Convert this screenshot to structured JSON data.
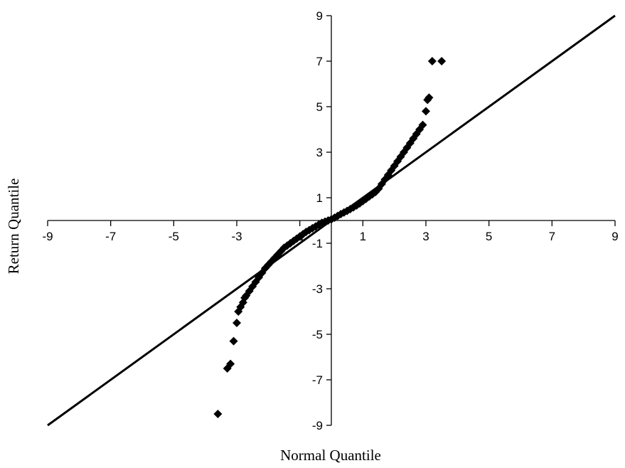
{
  "chart_data": {
    "type": "scatter",
    "title": "",
    "xlabel": "Normal Quantile",
    "ylabel": "Return Quantile",
    "xlim": [
      -9,
      9
    ],
    "ylim": [
      -9,
      9
    ],
    "x_ticks": [
      -9,
      -7,
      -5,
      -3,
      -1,
      1,
      3,
      5,
      7,
      9
    ],
    "y_ticks": [
      9,
      7,
      5,
      3,
      1,
      -1,
      -3,
      -5,
      -7,
      -9
    ],
    "x_tick_labels": [
      "-9",
      "-7",
      "-5",
      "-3",
      "-1",
      "1",
      "3",
      "5",
      "7",
      "9"
    ],
    "y_tick_labels": [
      "9",
      "7",
      "5",
      "3",
      "1",
      "-1",
      "-3",
      "-5",
      "-7",
      "-9"
    ],
    "grid": false,
    "legend": "none",
    "reference_line": {
      "from": [
        -9,
        -9
      ],
      "to": [
        9,
        9
      ]
    },
    "marker": "diamond",
    "marker_color": "#000000",
    "series": [
      {
        "x": [
          -3.6,
          -3.3,
          -3.2,
          -3.1,
          -3.0,
          -2.95,
          -2.88,
          -2.8,
          -2.75,
          -2.7,
          -2.6,
          -2.5,
          -2.4,
          -2.3,
          -2.2,
          -2.1,
          -2.0,
          -1.9,
          -1.8,
          -1.7,
          -1.6,
          -1.5,
          -1.4,
          -1.3,
          -1.2,
          -1.1,
          -1.0,
          -0.9,
          -0.8,
          -0.7,
          -0.6,
          -0.5,
          -0.4,
          -0.3,
          -0.2,
          -0.1,
          0.0,
          0.1,
          0.2,
          0.3,
          0.4,
          0.5,
          0.6,
          0.7,
          0.8,
          0.9,
          1.0,
          1.1,
          1.2,
          1.3,
          1.4,
          1.5,
          1.6,
          1.7,
          1.8,
          1.9,
          2.0,
          2.1,
          2.2,
          2.3,
          2.4,
          2.5,
          2.6,
          2.7,
          2.8,
          2.9,
          3.0,
          3.05,
          3.1,
          3.2,
          3.5
        ],
        "y": [
          -8.5,
          -6.5,
          -6.3,
          -5.3,
          -4.5,
          -4.0,
          -3.8,
          -3.6,
          -3.4,
          -3.3,
          -3.1,
          -2.9,
          -2.7,
          -2.5,
          -2.3,
          -2.1,
          -1.95,
          -1.8,
          -1.65,
          -1.5,
          -1.35,
          -1.2,
          -1.1,
          -1.0,
          -0.9,
          -0.8,
          -0.7,
          -0.6,
          -0.5,
          -0.42,
          -0.34,
          -0.26,
          -0.18,
          -0.1,
          -0.05,
          0.0,
          0.05,
          0.12,
          0.2,
          0.28,
          0.35,
          0.42,
          0.5,
          0.58,
          0.66,
          0.75,
          0.85,
          0.95,
          1.05,
          1.15,
          1.25,
          1.4,
          1.6,
          1.8,
          2.0,
          2.2,
          2.4,
          2.6,
          2.8,
          3.0,
          3.2,
          3.4,
          3.6,
          3.8,
          4.0,
          4.2,
          4.8,
          5.3,
          5.4,
          7.0,
          7.0
        ]
      }
    ]
  }
}
